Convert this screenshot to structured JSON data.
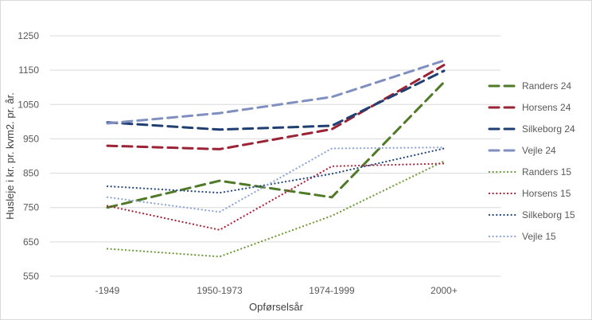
{
  "chart_data": {
    "type": "line",
    "title": "",
    "xlabel": "Opførselsår",
    "ylabel": "Husleje i kr. pr. kvm2. pr. år.",
    "categories": [
      "-1949",
      "1950-1973",
      "1974-1999",
      "2000+"
    ],
    "ylim": [
      550,
      1250
    ],
    "yticks": [
      550,
      650,
      750,
      850,
      950,
      1050,
      1150,
      1250
    ],
    "grid": true,
    "legend_position": "right",
    "series": [
      {
        "name": "Randers 24",
        "values": [
          750,
          828,
          780,
          1115
        ],
        "color": "#4f7a28",
        "style": "dashed"
      },
      {
        "name": "Horsens 24",
        "values": [
          930,
          920,
          978,
          1165
        ],
        "color": "#9b2335",
        "style": "dashed"
      },
      {
        "name": "Silkeborg 24",
        "values": [
          998,
          977,
          988,
          1148
        ],
        "color": "#1f3f73",
        "style": "dashed"
      },
      {
        "name": "Vejle 24",
        "values": [
          995,
          1025,
          1072,
          1178
        ],
        "color": "#7f8fc0",
        "style": "dashed"
      },
      {
        "name": "Randers 15",
        "values": [
          630,
          607,
          726,
          885
        ],
        "color": "#6f9a3a",
        "style": "dotted"
      },
      {
        "name": "Horsens 15",
        "values": [
          755,
          685,
          870,
          878
        ],
        "color": "#a3263a",
        "style": "dotted"
      },
      {
        "name": "Silkeborg 15",
        "values": [
          812,
          793,
          848,
          922
        ],
        "color": "#24497f",
        "style": "dotted"
      },
      {
        "name": "Vejle 15",
        "values": [
          780,
          737,
          922,
          925
        ],
        "color": "#8ea3d3",
        "style": "dotted"
      }
    ]
  }
}
